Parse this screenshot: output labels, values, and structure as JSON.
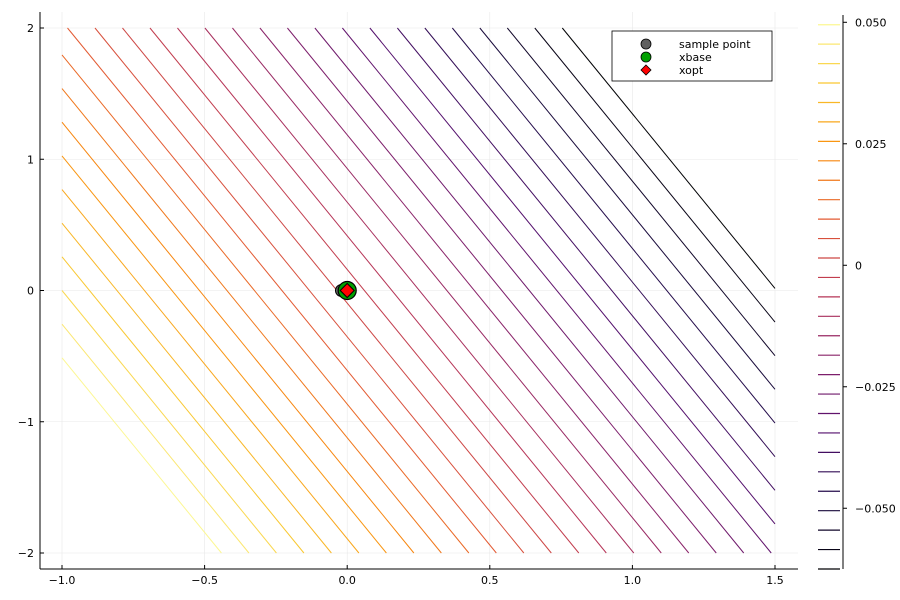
{
  "chart_data": {
    "type": "contour",
    "title": "",
    "xlabel": "",
    "ylabel": "",
    "xlim": [
      -1.0,
      1.5
    ],
    "ylim": [
      -2.0,
      2.0
    ],
    "x_ticks": [
      -1.0,
      -0.5,
      0.0,
      0.5,
      1.0,
      1.5
    ],
    "x_tick_labels": [
      "−1.0",
      "−0.5",
      "0.0",
      "0.5",
      "1.0",
      "1.5"
    ],
    "y_ticks": [
      -2,
      -1,
      0,
      1,
      2
    ],
    "y_tick_labels": [
      "−2",
      "−1",
      "0",
      "1",
      "2"
    ],
    "grid": true,
    "contour_function": "level = -(0.0415*x + 0.0156*y)",
    "contour_levels": [
      -0.0625,
      -0.0585,
      -0.0545,
      -0.0505,
      -0.0465,
      -0.0425,
      -0.0385,
      -0.0345,
      -0.0305,
      -0.0265,
      -0.0225,
      -0.0185,
      -0.0145,
      -0.0105,
      -0.0065,
      -0.0025,
      0.0015,
      0.0055,
      0.0095,
      0.0135,
      0.0175,
      0.0215,
      0.0255,
      0.0295,
      0.0335,
      0.0375,
      0.0415,
      0.0455,
      0.0495
    ],
    "colorbar": {
      "range": [
        -0.0625,
        0.0515
      ],
      "ticks": [
        -0.05,
        -0.025,
        0,
        0.025,
        0.05
      ],
      "tick_labels": [
        "−0.050",
        "−0.025",
        "0",
        "0.025",
        "0.050"
      ],
      "colormap": "inferno"
    },
    "series": [
      {
        "name": "sample point",
        "type": "scatter",
        "marker": "circle",
        "color": "#606060",
        "points": [
          [
            -0.02,
            0.0
          ],
          [
            0.0,
            0.0
          ]
        ]
      },
      {
        "name": "xbase",
        "type": "scatter",
        "marker": "circle",
        "color": "#00a000",
        "points": [
          [
            0.0,
            0.0
          ]
        ]
      },
      {
        "name": "xopt",
        "type": "scatter",
        "marker": "diamond",
        "color": "#ff0000",
        "points": [
          [
            0.0,
            0.0
          ]
        ]
      }
    ],
    "legend": {
      "position": "top-right"
    }
  }
}
